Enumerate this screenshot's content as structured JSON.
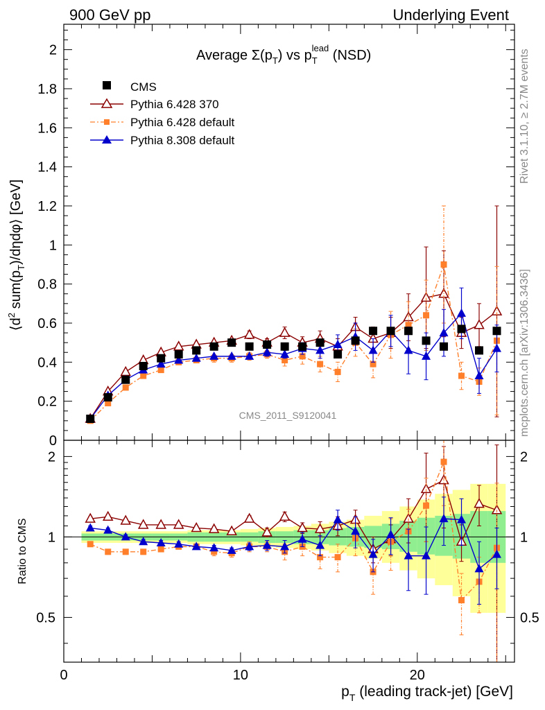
{
  "header": {
    "left": "900 GeV pp",
    "right": "Underlying Event"
  },
  "side_labels": {
    "rivet": "Rivet 3.1.10, ≥ 2.7M events",
    "mcplots": "mcplots.cern.ch [arXiv:1306.3436]"
  },
  "watermark": "CMS_2011_S9120041",
  "chart_data": [
    {
      "type": "scatter",
      "title": "Average Σ(pT) vs pT lead (NSD)",
      "title_parts": {
        "a": "Average ",
        "b": "Σ(p",
        "c": "T",
        "d": ") vs p",
        "e": "T",
        "f": "lead",
        "g": " (NSD)"
      },
      "ylabel": "⟨d² sum(pT)/dηdφ⟩ [GeV]",
      "ylabel_parts": {
        "a": "⟨d",
        "b": "2",
        "c": " sum(p",
        "d": "T",
        "e": ")/dηdφ⟩ [GeV]"
      },
      "xlim": [
        0,
        25.5
      ],
      "ylim": [
        0,
        2.13
      ],
      "y_ticks": [
        "0",
        "0.2",
        "0.4",
        "0.6",
        "0.8",
        "1",
        "1.2",
        "1.4",
        "1.6",
        "1.8",
        "2"
      ],
      "legend": {
        "placement": "top-left",
        "entries": [
          "CMS",
          "Pythia 6.428 370",
          "Pythia 6.428 default",
          "Pythia 8.308 default"
        ]
      },
      "x": [
        1.5,
        2.5,
        3.5,
        4.5,
        5.5,
        6.5,
        7.5,
        8.5,
        9.5,
        10.5,
        11.5,
        12.5,
        13.5,
        14.5,
        15.5,
        16.5,
        17.5,
        18.5,
        19.5,
        20.5,
        21.5,
        22.5,
        23.5,
        24.5
      ],
      "series": [
        {
          "name": "CMS",
          "color": "#000000",
          "marker": "square",
          "line": "none",
          "values": [
            0.11,
            0.22,
            0.31,
            0.38,
            0.42,
            0.44,
            0.46,
            0.48,
            0.5,
            0.48,
            0.49,
            0.48,
            0.48,
            0.5,
            0.44,
            0.51,
            0.56,
            0.56,
            0.56,
            0.51,
            0.48,
            0.57,
            0.46,
            0.56
          ],
          "errors": [
            0.005,
            0.005,
            0.005,
            0.005,
            0.005,
            0.005,
            0.005,
            0.005,
            0.005,
            0.005,
            0.005,
            0.005,
            0.005,
            0.005,
            0.005,
            0.005,
            0.005,
            0.005,
            0.005,
            0.005,
            0.005,
            0.005,
            0.005,
            0.005
          ]
        },
        {
          "name": "Pythia 6.428 370",
          "color": "#8b0000",
          "marker": "open-triangle",
          "line": "solid",
          "values": [
            0.11,
            0.25,
            0.35,
            0.41,
            0.45,
            0.48,
            0.49,
            0.5,
            0.51,
            0.54,
            0.5,
            0.55,
            0.5,
            0.52,
            0.48,
            0.58,
            0.52,
            0.55,
            0.63,
            0.73,
            0.75,
            0.55,
            0.59,
            0.66
          ],
          "errors": [
            0.01,
            0.01,
            0.01,
            0.01,
            0.01,
            0.01,
            0.01,
            0.01,
            0.01,
            0.02,
            0.02,
            0.03,
            0.03,
            0.04,
            0.04,
            0.05,
            0.06,
            0.08,
            0.12,
            0.26,
            0.22,
            0.08,
            0.11,
            0.54
          ]
        },
        {
          "name": "Pythia 6.428 default",
          "color": "#ff7f2a",
          "marker": "square-small",
          "line": "dashdot",
          "values": [
            0.1,
            0.19,
            0.27,
            0.33,
            0.36,
            0.4,
            0.41,
            0.42,
            0.42,
            0.43,
            0.44,
            0.41,
            0.43,
            0.39,
            0.35,
            0.5,
            0.39,
            0.54,
            0.59,
            0.64,
            0.9,
            0.33,
            0.3,
            0.51
          ],
          "errors": [
            0.01,
            0.01,
            0.01,
            0.01,
            0.01,
            0.01,
            0.01,
            0.02,
            0.02,
            0.02,
            0.02,
            0.03,
            0.04,
            0.04,
            0.05,
            0.07,
            0.07,
            0.12,
            0.12,
            0.18,
            0.3,
            0.07,
            0.07,
            0.38
          ]
        },
        {
          "name": "Pythia 8.308 default",
          "color": "#0000cc",
          "marker": "triangle",
          "line": "solid",
          "values": [
            0.11,
            0.23,
            0.31,
            0.36,
            0.39,
            0.41,
            0.42,
            0.43,
            0.43,
            0.43,
            0.45,
            0.44,
            0.47,
            0.46,
            0.49,
            0.53,
            0.46,
            0.56,
            0.46,
            0.43,
            0.55,
            0.65,
            0.33,
            0.47
          ],
          "errors": [
            0.005,
            0.005,
            0.005,
            0.005,
            0.01,
            0.01,
            0.01,
            0.01,
            0.01,
            0.015,
            0.02,
            0.02,
            0.03,
            0.04,
            0.05,
            0.07,
            0.06,
            0.08,
            0.12,
            0.12,
            0.12,
            0.13,
            0.09,
            0.12
          ]
        }
      ]
    },
    {
      "type": "scatter",
      "title": "",
      "ylabel": "Ratio to CMS",
      "xlabel": "pT (leading track-jet) [GeV]",
      "xlabel_parts": {
        "a": "p",
        "b": "T",
        "c": " (leading track-jet) [GeV]"
      },
      "xlim": [
        0,
        25.5
      ],
      "ylim": [
        0.34,
        2.3
      ],
      "x_ticks": [
        "0",
        "10",
        "20"
      ],
      "y_ticks": [
        "0.5",
        "1",
        "2"
      ],
      "reference_line": 1,
      "x": [
        1.5,
        2.5,
        3.5,
        4.5,
        5.5,
        6.5,
        7.5,
        8.5,
        9.5,
        10.5,
        11.5,
        12.5,
        13.5,
        14.5,
        15.5,
        16.5,
        17.5,
        18.5,
        19.5,
        20.5,
        21.5,
        22.5,
        23.5,
        24.5
      ],
      "uncertainty_bands": {
        "bin_edges": [
          1,
          2,
          3,
          4,
          5,
          6,
          7,
          8,
          9,
          10,
          11,
          12,
          13,
          14,
          15,
          16,
          17,
          18,
          19,
          20,
          21,
          22,
          23,
          24,
          25
        ],
        "green_color": "#90ee90",
        "yellow_color": "#ffff99",
        "green": [
          [
            0.97,
            1.03
          ],
          [
            0.97,
            1.03
          ],
          [
            0.97,
            1.03
          ],
          [
            0.97,
            1.03
          ],
          [
            0.97,
            1.03
          ],
          [
            0.97,
            1.03
          ],
          [
            0.96,
            1.04
          ],
          [
            0.96,
            1.04
          ],
          [
            0.96,
            1.04
          ],
          [
            0.96,
            1.04
          ],
          [
            0.95,
            1.05
          ],
          [
            0.95,
            1.05
          ],
          [
            0.94,
            1.06
          ],
          [
            0.94,
            1.06
          ],
          [
            0.93,
            1.08
          ],
          [
            0.92,
            1.09
          ],
          [
            0.91,
            1.1
          ],
          [
            0.9,
            1.12
          ],
          [
            0.88,
            1.15
          ],
          [
            0.86,
            1.18
          ],
          [
            0.85,
            1.2
          ],
          [
            0.83,
            1.22
          ],
          [
            0.8,
            1.25
          ],
          [
            0.8,
            1.25
          ]
        ],
        "yellow": [
          [
            0.95,
            1.05
          ],
          [
            0.95,
            1.05
          ],
          [
            0.95,
            1.05
          ],
          [
            0.95,
            1.05
          ],
          [
            0.95,
            1.05
          ],
          [
            0.95,
            1.05
          ],
          [
            0.94,
            1.06
          ],
          [
            0.94,
            1.06
          ],
          [
            0.94,
            1.06
          ],
          [
            0.93,
            1.07
          ],
          [
            0.92,
            1.08
          ],
          [
            0.91,
            1.09
          ],
          [
            0.9,
            1.1
          ],
          [
            0.89,
            1.12
          ],
          [
            0.87,
            1.14
          ],
          [
            0.85,
            1.16
          ],
          [
            0.83,
            1.2
          ],
          [
            0.8,
            1.25
          ],
          [
            0.75,
            1.3
          ],
          [
            0.7,
            1.38
          ],
          [
            0.66,
            1.45
          ],
          [
            0.6,
            1.5
          ],
          [
            0.52,
            1.58
          ],
          [
            0.52,
            1.58
          ]
        ]
      },
      "series": [
        {
          "name": "Pythia 6.428 370",
          "color": "#8b0000",
          "marker": "open-triangle",
          "line": "solid",
          "values": [
            1.17,
            1.19,
            1.15,
            1.11,
            1.11,
            1.11,
            1.08,
            1.07,
            1.05,
            1.17,
            1.04,
            1.19,
            1.08,
            1.07,
            1.1,
            1.16,
            0.9,
            0.98,
            1.17,
            1.51,
            1.63,
            0.96,
            1.33,
            1.26
          ],
          "errors": [
            0.02,
            0.02,
            0.02,
            0.02,
            0.02,
            0.02,
            0.02,
            0.02,
            0.02,
            0.03,
            0.04,
            0.05,
            0.05,
            0.07,
            0.09,
            0.1,
            0.1,
            0.13,
            0.22,
            0.55,
            0.55,
            0.15,
            0.23,
            0.95
          ]
        },
        {
          "name": "Pythia 6.428 default",
          "color": "#ff7f2a",
          "marker": "square-small",
          "line": "dashdot",
          "values": [
            0.94,
            0.88,
            0.88,
            0.88,
            0.9,
            0.92,
            0.92,
            0.88,
            0.87,
            0.92,
            0.92,
            0.88,
            0.92,
            0.84,
            0.84,
            0.99,
            0.74,
            0.96,
            1.05,
            1.31,
            1.91,
            0.58,
            0.68,
            0.91
          ],
          "errors": [
            0.02,
            0.02,
            0.02,
            0.02,
            0.02,
            0.02,
            0.02,
            0.03,
            0.03,
            0.04,
            0.04,
            0.06,
            0.07,
            0.08,
            0.1,
            0.14,
            0.13,
            0.21,
            0.22,
            0.35,
            0.6,
            0.15,
            0.16,
            0.68
          ]
        },
        {
          "name": "Pythia 8.308 default",
          "color": "#0000cc",
          "marker": "triangle",
          "line": "solid",
          "values": [
            1.08,
            1.06,
            1.0,
            0.96,
            0.95,
            0.94,
            0.92,
            0.91,
            0.89,
            0.92,
            0.93,
            0.92,
            0.98,
            0.93,
            1.16,
            1.05,
            0.86,
            1.02,
            0.85,
            0.85,
            1.17,
            1.16,
            0.76,
            0.86
          ],
          "errors": [
            0.02,
            0.02,
            0.02,
            0.02,
            0.02,
            0.02,
            0.02,
            0.02,
            0.02,
            0.03,
            0.04,
            0.05,
            0.06,
            0.08,
            0.1,
            0.14,
            0.12,
            0.16,
            0.22,
            0.24,
            0.24,
            0.23,
            0.2,
            0.22
          ]
        }
      ]
    }
  ]
}
